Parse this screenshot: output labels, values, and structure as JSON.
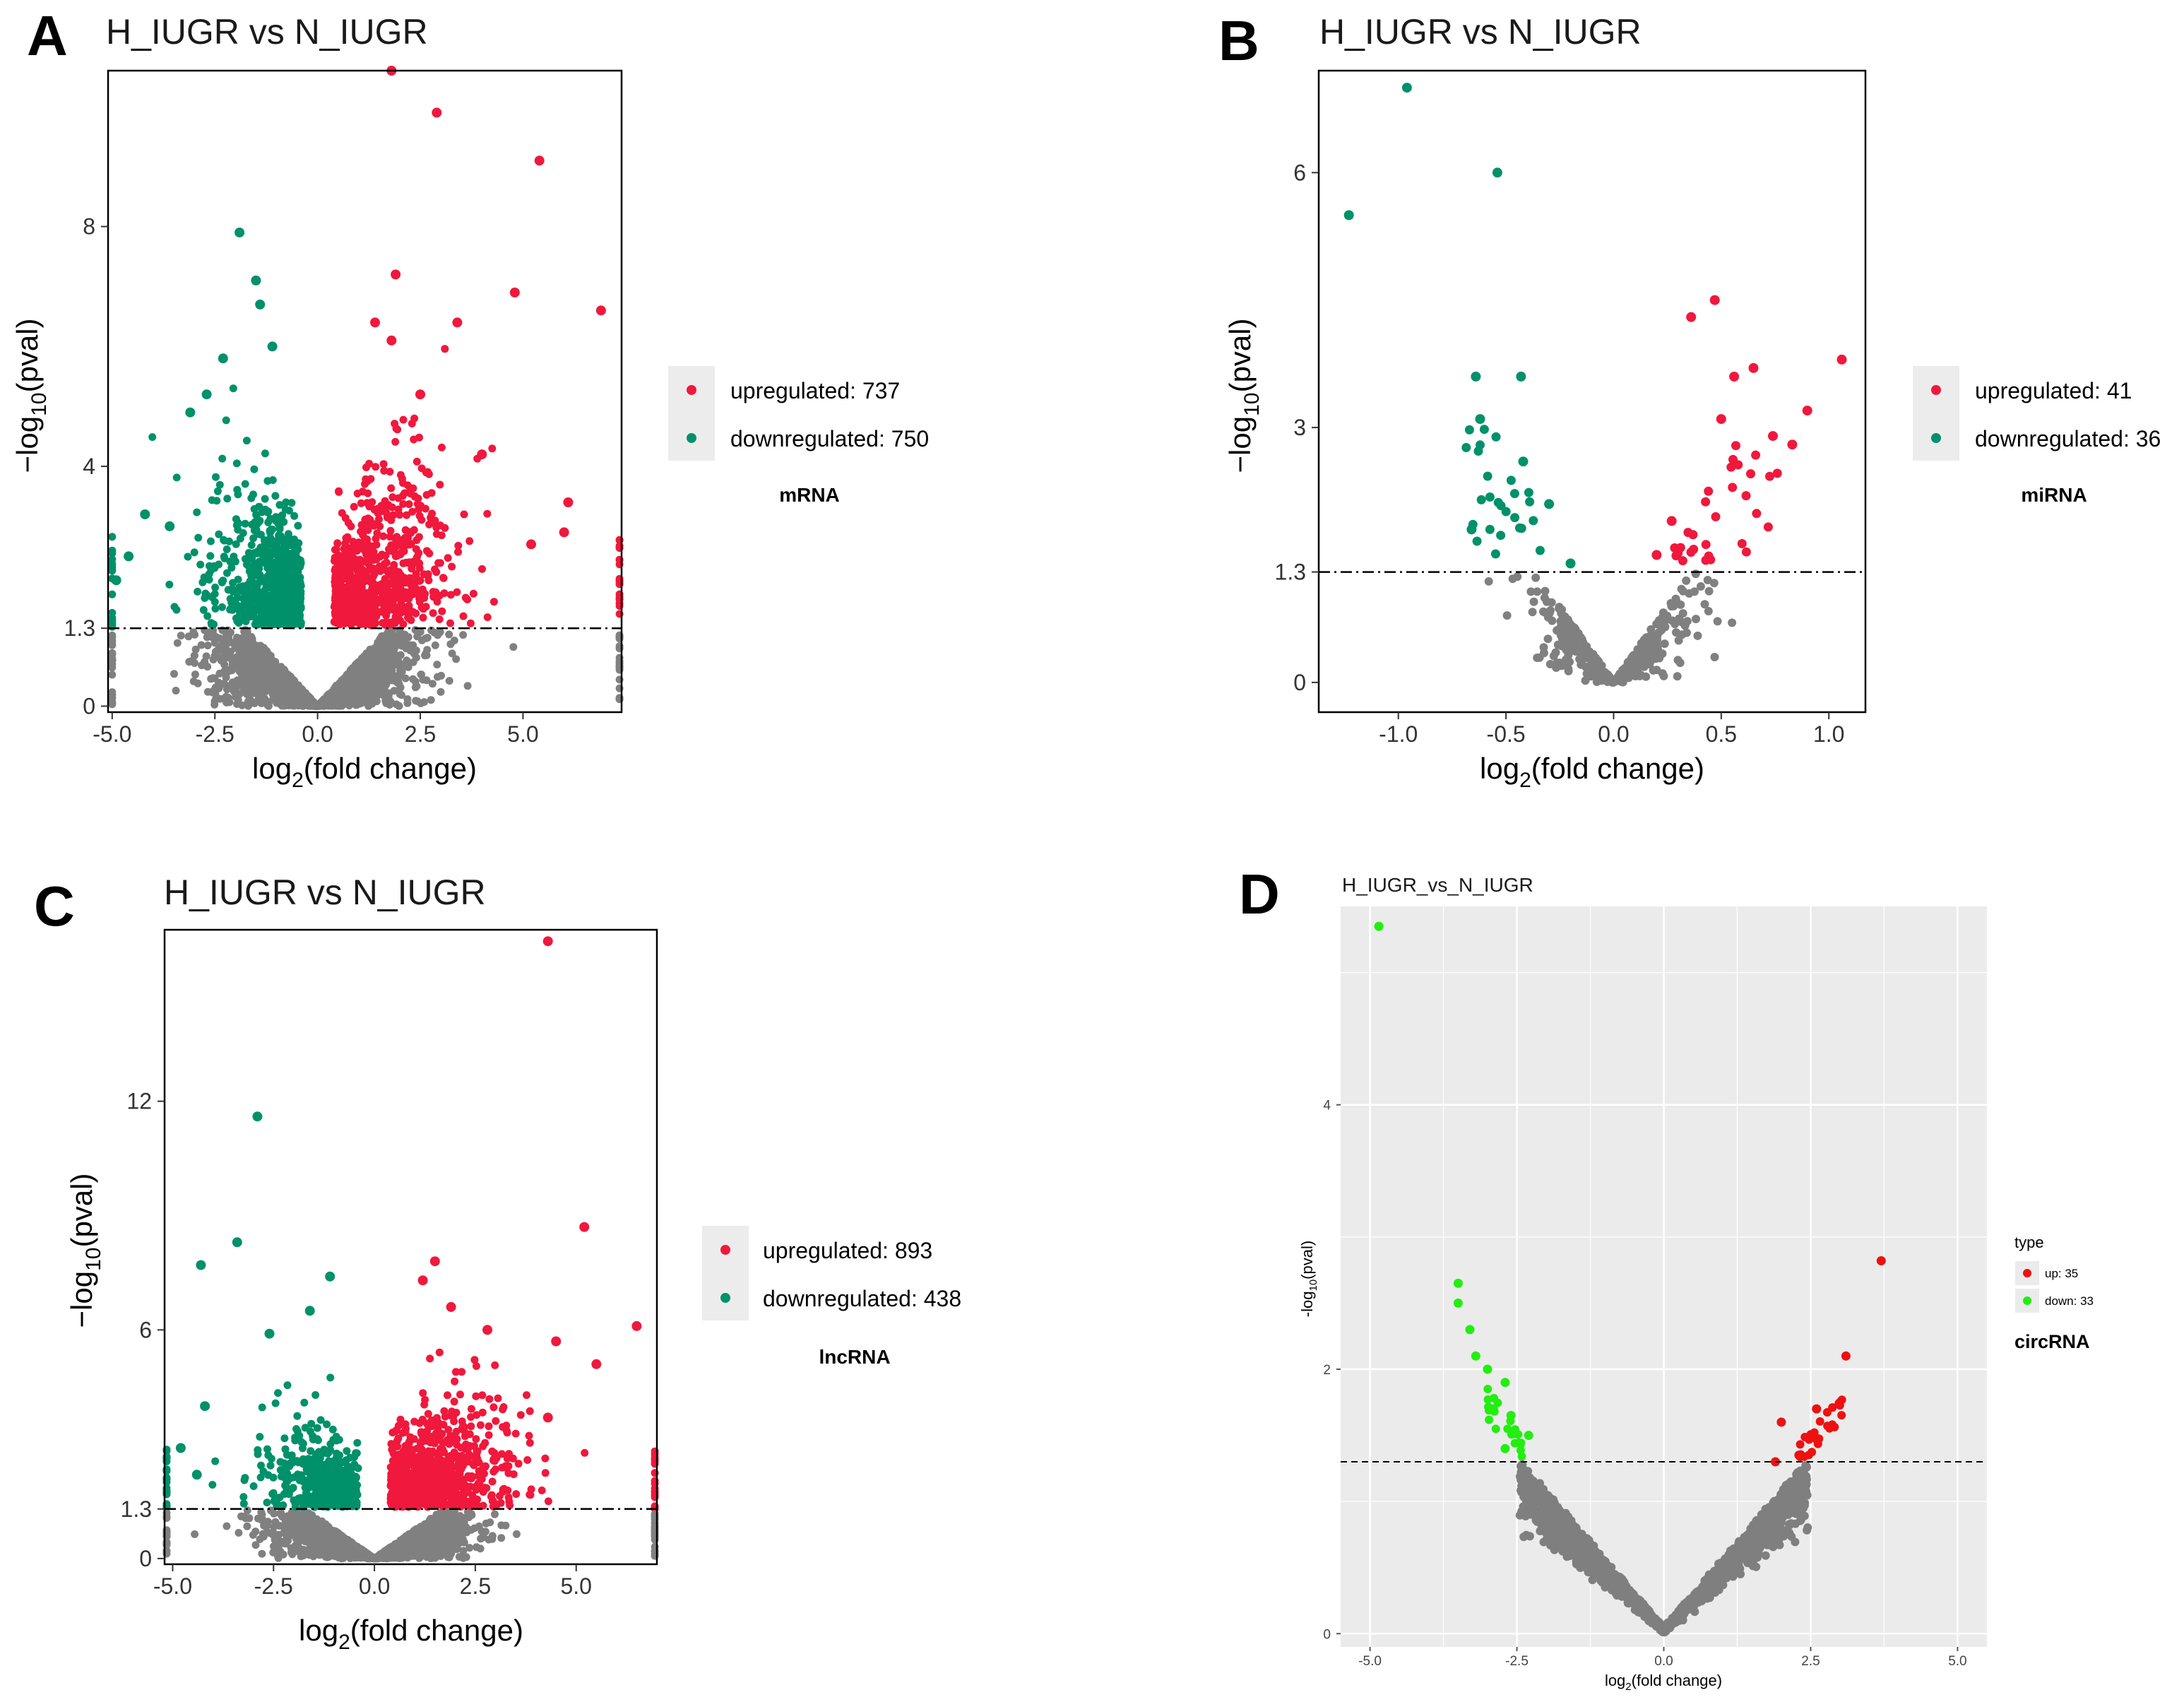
{
  "figure": {
    "panel_labels": [
      "A",
      "B",
      "C",
      "D"
    ]
  },
  "chart_data": [
    {
      "id": "A",
      "type": "scatter",
      "title": "H_IUGR vs N_IUGR",
      "xlabel": "log2(fold change)",
      "ylabel": "-log10(pval)",
      "xlim": [
        -5.1,
        7.4
      ],
      "ylim": [
        -0.1,
        10.6
      ],
      "xticks": [
        "-5.0",
        "-2.5",
        "0.0",
        "2.5",
        "5.0"
      ],
      "xtick_values": [
        -5,
        -2.5,
        0,
        2.5,
        5
      ],
      "yticks": [
        "0",
        "1.3",
        "4",
        "8"
      ],
      "ytick_values": [
        0,
        1.3,
        4,
        8
      ],
      "threshold": 1.3,
      "section_label": "mRNA",
      "legend": [
        {
          "label": "upregulated: 737",
          "color": "#f0183c"
        },
        {
          "label": "downregulated: 750",
          "color": "#00916a"
        }
      ],
      "series": [
        {
          "name": "upregulated",
          "color": "#f0183c",
          "count": 737
        },
        {
          "name": "downregulated",
          "color": "#00916a",
          "count": 750
        },
        {
          "name": "not significant",
          "color": "#808080"
        }
      ],
      "highlight_points": {
        "up": [
          [
            1.8,
            10.6
          ],
          [
            2.9,
            9.9
          ],
          [
            5.4,
            9.1
          ],
          [
            1.9,
            7.2
          ],
          [
            4.8,
            6.9
          ],
          [
            6.9,
            6.6
          ],
          [
            1.4,
            6.4
          ],
          [
            3.4,
            6.4
          ],
          [
            1.8,
            6.1
          ],
          [
            2.5,
            5.2
          ],
          [
            4,
            4.2
          ],
          [
            6.1,
            3.4
          ],
          [
            6,
            2.9
          ],
          [
            5.2,
            2.7
          ]
        ],
        "down": [
          [
            -1.9,
            7.9
          ],
          [
            -1.5,
            7.1
          ],
          [
            -1.4,
            6.7
          ],
          [
            -1.1,
            6.0
          ],
          [
            -2.3,
            5.8
          ],
          [
            -2.7,
            5.2
          ],
          [
            -3.1,
            4.9
          ],
          [
            -4.2,
            3.2
          ],
          [
            -3.6,
            3.0
          ],
          [
            -4.9,
            2.1
          ],
          [
            -4.6,
            2.5
          ]
        ]
      },
      "cloud_model": {
        "xsd": 1.35,
        "gray_steep": 0.55,
        "up_count": 737,
        "down_count": 750,
        "gray_count": 1900,
        "edge_x": [
          -5.0,
          7.35
        ]
      }
    },
    {
      "id": "B",
      "type": "scatter",
      "title": "H_IUGR vs N_IUGR",
      "xlabel": "log2(fold change)",
      "ylabel": "-log10(pval)",
      "xlim": [
        -1.37,
        1.17
      ],
      "ylim": [
        -0.35,
        7.2
      ],
      "xticks": [
        "-1.0",
        "-0.5",
        "0.0",
        "0.5",
        "1.0"
      ],
      "xtick_values": [
        -1,
        -0.5,
        0,
        0.5,
        1
      ],
      "yticks": [
        "0",
        "1.3",
        "3",
        "6"
      ],
      "ytick_values": [
        0,
        1.3,
        3,
        6
      ],
      "threshold": 1.3,
      "section_label": "miRNA",
      "legend": [
        {
          "label": "upregulated: 41",
          "color": "#f0183c"
        },
        {
          "label": "downregulated: 36",
          "color": "#00916a"
        }
      ],
      "series": [
        {
          "name": "upregulated",
          "color": "#f0183c",
          "count": 41
        },
        {
          "name": "downregulated",
          "color": "#00916a",
          "count": 36
        },
        {
          "name": "not significant",
          "color": "#808080"
        }
      ],
      "highlight_points": {
        "up": [
          [
            0.47,
            4.5
          ],
          [
            0.36,
            4.3
          ],
          [
            1.06,
            3.8
          ],
          [
            0.65,
            3.7
          ],
          [
            0.56,
            3.6
          ],
          [
            0.9,
            3.2
          ],
          [
            0.5,
            3.1
          ],
          [
            0.74,
            2.9
          ],
          [
            0.83,
            2.8
          ],
          [
            0.27,
            1.9
          ],
          [
            0.2,
            1.5
          ]
        ],
        "down": [
          [
            -0.96,
            7.0
          ],
          [
            -0.54,
            6.0
          ],
          [
            -1.23,
            5.5
          ],
          [
            -0.64,
            3.6
          ],
          [
            -0.43,
            3.6
          ],
          [
            -0.62,
            3.1
          ],
          [
            -0.42,
            2.6
          ],
          [
            -0.3,
            2.1
          ],
          [
            -0.66,
            1.8
          ],
          [
            -0.2,
            1.4
          ]
        ]
      },
      "cloud_model": {
        "xsd": 0.28,
        "gray_count": 420,
        "up_count": 30,
        "down_count": 26
      }
    },
    {
      "id": "C",
      "type": "scatter",
      "title": "H_IUGR vs N_IUGR",
      "xlabel": "log2(fold change)",
      "ylabel": "-log10(pval)",
      "xlim": [
        -5.2,
        7.0
      ],
      "ylim": [
        -0.15,
        16.5
      ],
      "xticks": [
        "-5.0",
        "-2.5",
        "0.0",
        "2.5",
        "5.0"
      ],
      "xtick_values": [
        -5,
        -2.5,
        0,
        2.5,
        5
      ],
      "yticks": [
        "0",
        "1.3",
        "6",
        "12"
      ],
      "ytick_values": [
        0,
        1.3,
        6,
        12
      ],
      "threshold": 1.3,
      "section_label": "lncRNA",
      "legend": [
        {
          "label": "upregulated: 893",
          "color": "#f0183c"
        },
        {
          "label": "downregulated: 438",
          "color": "#00916a"
        }
      ],
      "series": [
        {
          "name": "upregulated",
          "color": "#f0183c",
          "count": 893
        },
        {
          "name": "downregulated",
          "color": "#00916a",
          "count": 438
        },
        {
          "name": "not significant",
          "color": "#808080"
        }
      ],
      "highlight_points": {
        "up": [
          [
            4.3,
            16.2
          ],
          [
            5.2,
            8.7
          ],
          [
            6.5,
            6.1
          ],
          [
            1.5,
            7.8
          ],
          [
            2.8,
            6.0
          ],
          [
            4.5,
            5.7
          ],
          [
            5.5,
            5.1
          ],
          [
            4.3,
            3.7
          ],
          [
            1.2,
            7.3
          ],
          [
            1.9,
            6.6
          ]
        ],
        "down": [
          [
            -2.9,
            11.6
          ],
          [
            -3.4,
            8.3
          ],
          [
            -4.3,
            7.7
          ],
          [
            -1.1,
            7.4
          ],
          [
            -1.6,
            6.5
          ],
          [
            -2.6,
            5.9
          ],
          [
            -4.2,
            4.0
          ],
          [
            -4.8,
            2.9
          ],
          [
            -4.4,
            2.2
          ]
        ]
      },
      "cloud_model": {
        "xsd": 1.3,
        "gray_count": 1800,
        "up_count": 893,
        "down_count": 438,
        "edge_x": [
          -5.15,
          6.95
        ]
      }
    },
    {
      "id": "D",
      "type": "scatter",
      "title": "H_IUGR_vs_N_IUGR",
      "xlabel": "log2(fold change)",
      "ylabel": "-log10(pval)",
      "xlim": [
        -5.5,
        5.5
      ],
      "ylim": [
        -0.1,
        5.5
      ],
      "xticks": [
        "-5.0",
        "-2.5",
        "0.0",
        "2.5",
        "5.0"
      ],
      "xtick_values": [
        -5,
        -2.5,
        0,
        2.5,
        5
      ],
      "yticks": [
        "0",
        "2",
        "4"
      ],
      "ytick_values": [
        0,
        2,
        4
      ],
      "threshold": 1.3,
      "section_label": "circRNA",
      "legend_title": "type",
      "legend": [
        {
          "label": "up: 35",
          "color": "#ee1111"
        },
        {
          "label": "down: 33",
          "color": "#22ee11"
        }
      ],
      "series": [
        {
          "name": "up",
          "color": "#ee1111",
          "count": 35
        },
        {
          "name": "down",
          "color": "#22ee11",
          "count": 33
        },
        {
          "name": "not significant",
          "color": "#7f7f7f"
        }
      ],
      "highlight_points": {
        "up": [
          [
            3.7,
            2.82
          ],
          [
            3.1,
            2.1
          ],
          [
            2.6,
            1.7
          ],
          [
            2.5,
            1.5
          ],
          [
            2.0,
            1.6
          ],
          [
            1.9,
            1.3
          ],
          [
            2.3,
            1.35
          ]
        ],
        "down": [
          [
            -4.85,
            5.35
          ],
          [
            -3.5,
            2.65
          ],
          [
            -3.5,
            2.5
          ],
          [
            -3.3,
            2.3
          ],
          [
            -3.2,
            2.1
          ],
          [
            -3.0,
            2.0
          ],
          [
            -2.7,
            1.9
          ],
          [
            -2.9,
            1.7
          ],
          [
            -2.6,
            1.65
          ],
          [
            -2.3,
            1.5
          ],
          [
            -2.7,
            1.4
          ]
        ]
      },
      "cloud_model": {
        "v_slope": 0.52,
        "gray_count": 1700,
        "up_count": 28,
        "down_count": 22
      }
    }
  ]
}
